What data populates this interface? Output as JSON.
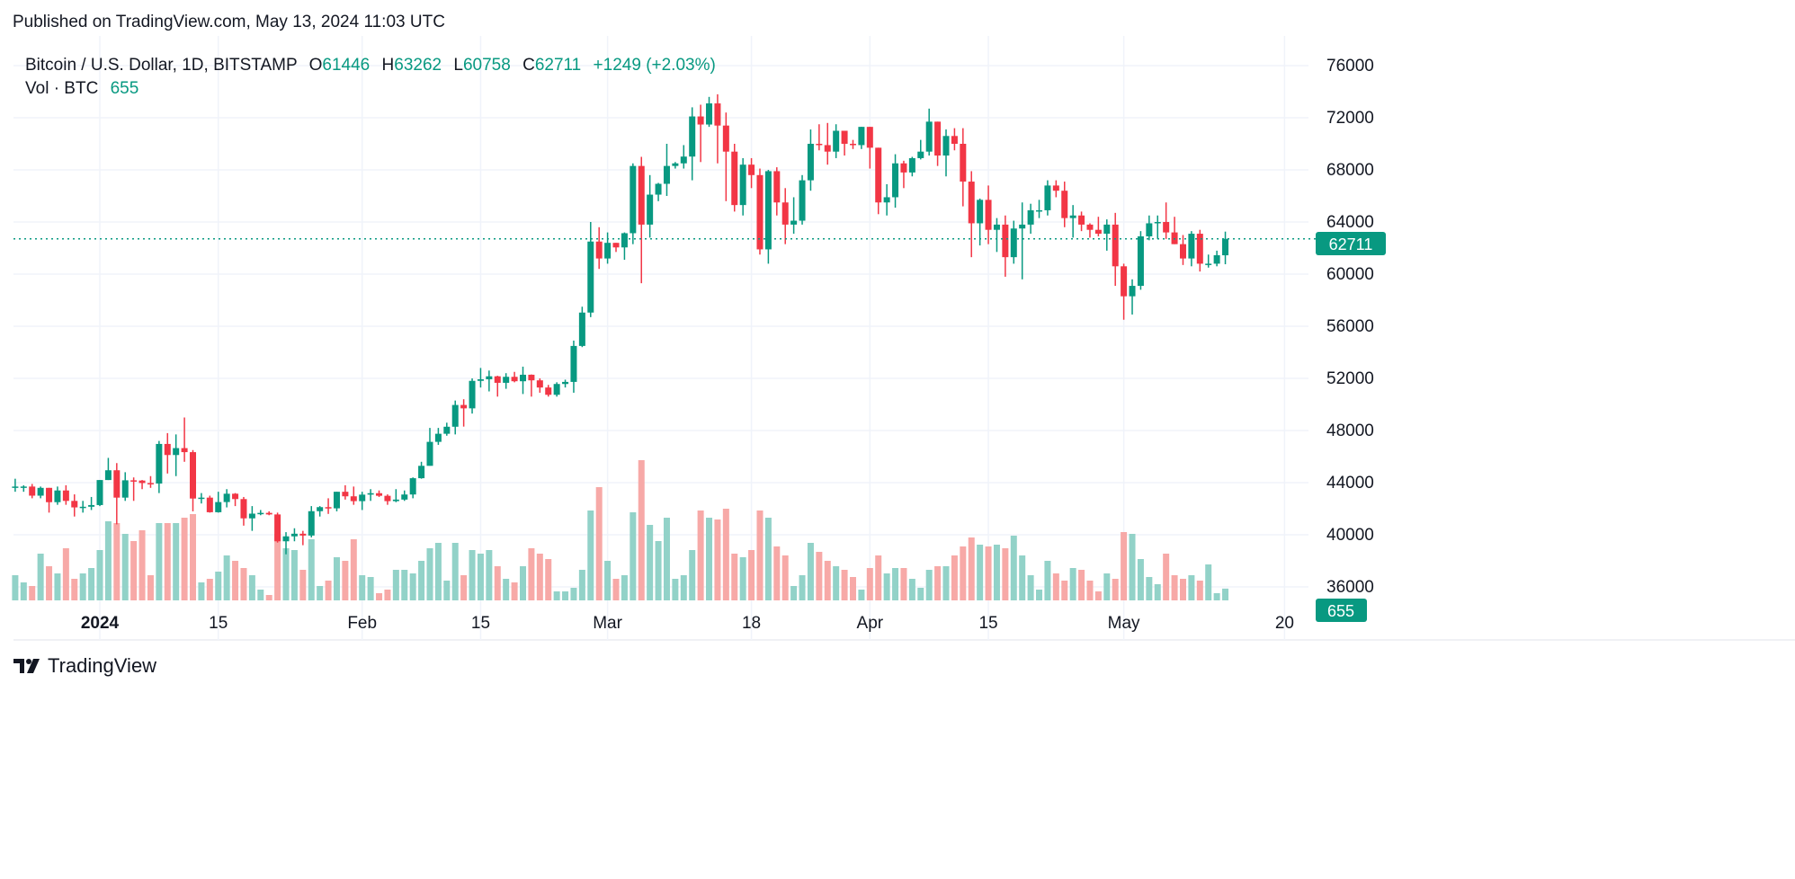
{
  "header": {
    "published": "Published on TradingView.com, May 13, 2024 11:03 UTC"
  },
  "legend": {
    "symbol": "Bitcoin / U.S. Dollar, 1D, BITSTAMP",
    "o_label": "O",
    "o": "61446",
    "h_label": "H",
    "h": "63262",
    "l_label": "L",
    "l": "60758",
    "c_label": "C",
    "c": "62711",
    "change": "+1249 (+2.03%)",
    "vol_label": "Vol · BTC",
    "vol": "655"
  },
  "footer": {
    "brand": "TradingView"
  },
  "colors": {
    "up": "#089981",
    "down": "#f23645",
    "up_vol": "#92d2c8",
    "down_vol": "#f7a9a7",
    "grid": "#f0f3fa"
  },
  "chart_data": {
    "type": "candlestick",
    "symbol": "BTCUSD",
    "price_ticks": [
      "76000",
      "72000",
      "68000",
      "64000",
      "60000",
      "56000",
      "52000",
      "48000",
      "44000",
      "40000",
      "36000"
    ],
    "x_ticks": [
      {
        "date": "2024-01-01",
        "label": "2024"
      },
      {
        "date": "2024-01-15",
        "label": "15"
      },
      {
        "date": "2024-02-01",
        "label": "Feb"
      },
      {
        "date": "2024-02-15",
        "label": "15"
      },
      {
        "date": "2024-03-01",
        "label": "Mar"
      },
      {
        "date": "2024-03-18",
        "label": "18"
      },
      {
        "date": "2024-04-01",
        "label": "Apr"
      },
      {
        "date": "2024-04-15",
        "label": "15"
      },
      {
        "date": "2024-05-01",
        "label": "May"
      },
      {
        "date": "2024-05-20",
        "label": "20"
      }
    ],
    "ylim": [
      35000,
      78000
    ],
    "last_price": "62711",
    "last_volume": "655",
    "grid": true,
    "x": [
      "2023-12-22",
      "2023-12-23",
      "2023-12-24",
      "2023-12-25",
      "2023-12-26",
      "2023-12-27",
      "2023-12-28",
      "2023-12-29",
      "2023-12-30",
      "2023-12-31",
      "2024-01-01",
      "2024-01-02",
      "2024-01-03",
      "2024-01-04",
      "2024-01-05",
      "2024-01-06",
      "2024-01-07",
      "2024-01-08",
      "2024-01-09",
      "2024-01-10",
      "2024-01-11",
      "2024-01-12",
      "2024-01-13",
      "2024-01-14",
      "2024-01-15",
      "2024-01-16",
      "2024-01-17",
      "2024-01-18",
      "2024-01-19",
      "2024-01-20",
      "2024-01-21",
      "2024-01-22",
      "2024-01-23",
      "2024-01-24",
      "2024-01-25",
      "2024-01-26",
      "2024-01-27",
      "2024-01-28",
      "2024-01-29",
      "2024-01-30",
      "2024-01-31",
      "2024-02-01",
      "2024-02-02",
      "2024-02-03",
      "2024-02-04",
      "2024-02-05",
      "2024-02-06",
      "2024-02-07",
      "2024-02-08",
      "2024-02-09",
      "2024-02-10",
      "2024-02-11",
      "2024-02-12",
      "2024-02-13",
      "2024-02-14",
      "2024-02-15",
      "2024-02-16",
      "2024-02-17",
      "2024-02-18",
      "2024-02-19",
      "2024-02-20",
      "2024-02-21",
      "2024-02-22",
      "2024-02-23",
      "2024-02-24",
      "2024-02-25",
      "2024-02-26",
      "2024-02-27",
      "2024-02-28",
      "2024-02-29",
      "2024-03-01",
      "2024-03-02",
      "2024-03-03",
      "2024-03-04",
      "2024-03-05",
      "2024-03-06",
      "2024-03-07",
      "2024-03-08",
      "2024-03-09",
      "2024-03-10",
      "2024-03-11",
      "2024-03-12",
      "2024-03-13",
      "2024-03-14",
      "2024-03-15",
      "2024-03-16",
      "2024-03-17",
      "2024-03-18",
      "2024-03-19",
      "2024-03-20",
      "2024-03-21",
      "2024-03-22",
      "2024-03-23",
      "2024-03-24",
      "2024-03-25",
      "2024-03-26",
      "2024-03-27",
      "2024-03-28",
      "2024-03-29",
      "2024-03-30",
      "2024-03-31",
      "2024-04-01",
      "2024-04-02",
      "2024-04-03",
      "2024-04-04",
      "2024-04-05",
      "2024-04-06",
      "2024-04-07",
      "2024-04-08",
      "2024-04-09",
      "2024-04-10",
      "2024-04-11",
      "2024-04-12",
      "2024-04-13",
      "2024-04-14",
      "2024-04-15",
      "2024-04-16",
      "2024-04-17",
      "2024-04-18",
      "2024-04-19",
      "2024-04-20",
      "2024-04-21",
      "2024-04-22",
      "2024-04-23",
      "2024-04-24",
      "2024-04-25",
      "2024-04-26",
      "2024-04-27",
      "2024-04-28",
      "2024-04-29",
      "2024-04-30",
      "2024-05-01",
      "2024-05-02",
      "2024-05-03",
      "2024-05-04",
      "2024-05-05",
      "2024-05-06",
      "2024-05-07",
      "2024-05-08",
      "2024-05-09",
      "2024-05-10",
      "2024-05-11",
      "2024-05-12",
      "2024-05-13"
    ],
    "ohlc": [
      [
        43600,
        44300,
        43300,
        43700
      ],
      [
        43700,
        43800,
        43300,
        43700
      ],
      [
        43700,
        43900,
        42800,
        43000
      ],
      [
        43000,
        43700,
        42800,
        43600
      ],
      [
        43600,
        43600,
        41700,
        42500
      ],
      [
        42500,
        43700,
        42300,
        43400
      ],
      [
        43400,
        43800,
        42300,
        42600
      ],
      [
        42600,
        43100,
        41400,
        42100
      ],
      [
        42100,
        42600,
        41700,
        42150
      ],
      [
        42150,
        42900,
        41900,
        42280
      ],
      [
        42280,
        44200,
        42200,
        44200
      ],
      [
        44200,
        45900,
        44200,
        44950
      ],
      [
        44950,
        45500,
        40800,
        42850
      ],
      [
        42850,
        44800,
        42600,
        44180
      ],
      [
        44180,
        44400,
        42600,
        44160
      ],
      [
        44160,
        44200,
        43500,
        43970
      ],
      [
        43970,
        44500,
        43600,
        43930
      ],
      [
        43930,
        47200,
        43200,
        46970
      ],
      [
        46970,
        47800,
        44700,
        46120
      ],
      [
        46120,
        47700,
        44500,
        46650
      ],
      [
        46650,
        49000,
        45600,
        46340
      ],
      [
        46340,
        46500,
        41800,
        42780
      ],
      [
        42780,
        43200,
        42400,
        42850
      ],
      [
        42850,
        43000,
        41700,
        41730
      ],
      [
        41730,
        43300,
        41700,
        42510
      ],
      [
        42510,
        43500,
        42100,
        43150
      ],
      [
        43150,
        43200,
        42200,
        42740
      ],
      [
        42740,
        42900,
        40700,
        41260
      ],
      [
        41260,
        42200,
        40300,
        41620
      ],
      [
        41620,
        41900,
        41500,
        41680
      ],
      [
        41680,
        41800,
        41500,
        41560
      ],
      [
        41560,
        41700,
        39400,
        39500
      ],
      [
        39500,
        40200,
        38500,
        39880
      ],
      [
        39880,
        40500,
        39500,
        40080
      ],
      [
        40080,
        40300,
        39200,
        39940
      ],
      [
        39940,
        42200,
        39800,
        41810
      ],
      [
        41810,
        42200,
        41400,
        42120
      ],
      [
        42120,
        42800,
        41600,
        42030
      ],
      [
        42030,
        43300,
        41800,
        43300
      ],
      [
        43300,
        43800,
        42700,
        42950
      ],
      [
        42950,
        43700,
        42300,
        42580
      ],
      [
        42580,
        43300,
        41900,
        43080
      ],
      [
        43080,
        43500,
        42600,
        43190
      ],
      [
        43190,
        43400,
        42900,
        42990
      ],
      [
        42990,
        43100,
        42300,
        42580
      ],
      [
        42580,
        43500,
        42500,
        42700
      ],
      [
        42700,
        43400,
        42600,
        43090
      ],
      [
        43090,
        44400,
        42800,
        44340
      ],
      [
        44340,
        45600,
        44300,
        45290
      ],
      [
        45290,
        48200,
        45300,
        47130
      ],
      [
        47130,
        48200,
        46900,
        47750
      ],
      [
        47750,
        48600,
        47600,
        48290
      ],
      [
        48290,
        50300,
        47700,
        49960
      ],
      [
        49960,
        50400,
        48300,
        49700
      ],
      [
        49700,
        52000,
        49300,
        51810
      ],
      [
        51810,
        52800,
        51300,
        51930
      ],
      [
        51930,
        52600,
        51000,
        52160
      ],
      [
        52160,
        52200,
        50600,
        51660
      ],
      [
        51660,
        52400,
        51200,
        52120
      ],
      [
        52120,
        52500,
        51700,
        51780
      ],
      [
        51780,
        52900,
        50800,
        52280
      ],
      [
        52280,
        52300,
        50600,
        51850
      ],
      [
        51850,
        52000,
        50900,
        51300
      ],
      [
        51300,
        51500,
        50600,
        50740
      ],
      [
        50740,
        51700,
        50600,
        51570
      ],
      [
        51570,
        51900,
        51300,
        51730
      ],
      [
        51730,
        54900,
        50900,
        54490
      ],
      [
        54490,
        57500,
        54400,
        57050
      ],
      [
        57050,
        64000,
        56700,
        62500
      ],
      [
        62500,
        63600,
        60400,
        61200
      ],
      [
        61200,
        63200,
        60800,
        62400
      ],
      [
        62400,
        62400,
        61700,
        62050
      ],
      [
        62050,
        63200,
        61100,
        63140
      ],
      [
        63140,
        68500,
        62300,
        68300
      ],
      [
        68300,
        69000,
        59300,
        63800
      ],
      [
        63800,
        67600,
        62800,
        66100
      ],
      [
        66100,
        67000,
        65600,
        66930
      ],
      [
        66930,
        70000,
        66000,
        68300
      ],
      [
        68300,
        68600,
        68100,
        68500
      ],
      [
        68500,
        69900,
        68100,
        69020
      ],
      [
        69020,
        72800,
        67200,
        72100
      ],
      [
        72100,
        73000,
        68600,
        71480
      ],
      [
        71480,
        73600,
        71300,
        73100
      ],
      [
        73100,
        73800,
        68500,
        71400
      ],
      [
        71400,
        72400,
        65600,
        69400
      ],
      [
        69400,
        70000,
        64800,
        65300
      ],
      [
        65300,
        68900,
        64500,
        68400
      ],
      [
        68400,
        68900,
        66600,
        67600
      ],
      [
        67600,
        68100,
        61500,
        61900
      ],
      [
        61900,
        68000,
        60800,
        67900
      ],
      [
        67900,
        68200,
        64500,
        65500
      ],
      [
        65500,
        66600,
        62300,
        63800
      ],
      [
        63800,
        65900,
        63100,
        64100
      ],
      [
        64100,
        67600,
        63800,
        67200
      ],
      [
        67200,
        71100,
        66400,
        70000
      ],
      [
        70000,
        71500,
        69500,
        69900
      ],
      [
        69900,
        71600,
        68400,
        69400
      ],
      [
        69400,
        71500,
        68900,
        71000
      ],
      [
        71000,
        71000,
        69100,
        70000
      ],
      [
        70000,
        70300,
        69600,
        69900
      ],
      [
        69900,
        71300,
        69600,
        71300
      ],
      [
        71300,
        71300,
        68100,
        69700
      ],
      [
        69700,
        69700,
        64600,
        65500
      ],
      [
        65500,
        66900,
        64500,
        65900
      ],
      [
        65900,
        69200,
        65100,
        68500
      ],
      [
        68500,
        68700,
        66600,
        67800
      ],
      [
        67800,
        69000,
        67500,
        68900
      ],
      [
        68900,
        70300,
        68800,
        69400
      ],
      [
        69400,
        72700,
        69100,
        71700
      ],
      [
        71700,
        71700,
        68300,
        69100
      ],
      [
        69100,
        71100,
        67500,
        70600
      ],
      [
        70600,
        71200,
        69500,
        70000
      ],
      [
        70000,
        71200,
        65200,
        67100
      ],
      [
        67100,
        67900,
        61300,
        63900
      ],
      [
        63900,
        65800,
        62200,
        65700
      ],
      [
        65700,
        66800,
        62300,
        63400
      ],
      [
        63400,
        64300,
        61700,
        63800
      ],
      [
        63800,
        64500,
        59800,
        61300
      ],
      [
        61300,
        64100,
        60800,
        63500
      ],
      [
        63500,
        65500,
        59600,
        63800
      ],
      [
        63800,
        65400,
        63100,
        64900
      ],
      [
        64900,
        65700,
        64300,
        64900
      ],
      [
        64900,
        67200,
        64500,
        66800
      ],
      [
        66800,
        67200,
        65900,
        66400
      ],
      [
        66400,
        67100,
        63600,
        64300
      ],
      [
        64300,
        65300,
        62800,
        64500
      ],
      [
        64500,
        64800,
        63300,
        63800
      ],
      [
        63800,
        63900,
        62800,
        63400
      ],
      [
        63400,
        64400,
        62900,
        63100
      ],
      [
        63100,
        64200,
        61800,
        63800
      ],
      [
        63800,
        64700,
        59100,
        60600
      ],
      [
        60600,
        60800,
        56500,
        58300
      ],
      [
        58300,
        59600,
        56900,
        59100
      ],
      [
        59100,
        63300,
        58800,
        62900
      ],
      [
        62900,
        64500,
        62600,
        63900
      ],
      [
        63900,
        64500,
        62700,
        64000
      ],
      [
        64000,
        65500,
        62700,
        63200
      ],
      [
        63200,
        64400,
        62300,
        62300
      ],
      [
        62300,
        63000,
        60700,
        61200
      ],
      [
        61200,
        63300,
        60600,
        63100
      ],
      [
        63100,
        63400,
        60200,
        60800
      ],
      [
        60800,
        61500,
        60500,
        60800
      ],
      [
        60800,
        61800,
        60600,
        61450
      ],
      [
        61446,
        63262,
        60758,
        62711
      ]
    ],
    "volume": [
      1400,
      1000,
      800,
      2600,
      1900,
      1500,
      2900,
      1200,
      1500,
      1800,
      2800,
      4400,
      4300,
      3700,
      3300,
      3900,
      1400,
      4300,
      4300,
      4300,
      4600,
      4800,
      1000,
      1200,
      1600,
      2500,
      2200,
      1800,
      1400,
      600,
      300,
      3700,
      2900,
      2800,
      1700,
      3400,
      800,
      1100,
      2400,
      2200,
      3400,
      1400,
      1300,
      400,
      600,
      1700,
      1700,
      1500,
      2200,
      2900,
      3200,
      1100,
      3200,
      1400,
      2800,
      2600,
      2800,
      1900,
      1200,
      1000,
      1900,
      2900,
      2600,
      2300,
      500,
      500,
      700,
      1700,
      5000,
      6300,
      2200,
      1200,
      1400,
      4900,
      7800,
      4200,
      3300,
      4600,
      1200,
      1400,
      2800,
      5000,
      4600,
      4500,
      5100,
      2600,
      2400,
      2800,
      5000,
      4600,
      3000,
      2500,
      800,
      1400,
      3200,
      2700,
      2200,
      1900,
      1700,
      1300,
      600,
      1800,
      2500,
      1500,
      1800,
      1800,
      1200,
      700,
      1700,
      1900,
      1900,
      2500,
      3000,
      3500,
      3100,
      3000,
      3100,
      2900,
      3600,
      2500,
      1400,
      600,
      2200,
      1500,
      1100,
      1800,
      1700,
      1100,
      500,
      1500,
      1200,
      3800,
      3700,
      2300,
      1300,
      900,
      2600,
      1400,
      1200,
      1400,
      1100,
      2000,
      400,
      655
    ]
  }
}
